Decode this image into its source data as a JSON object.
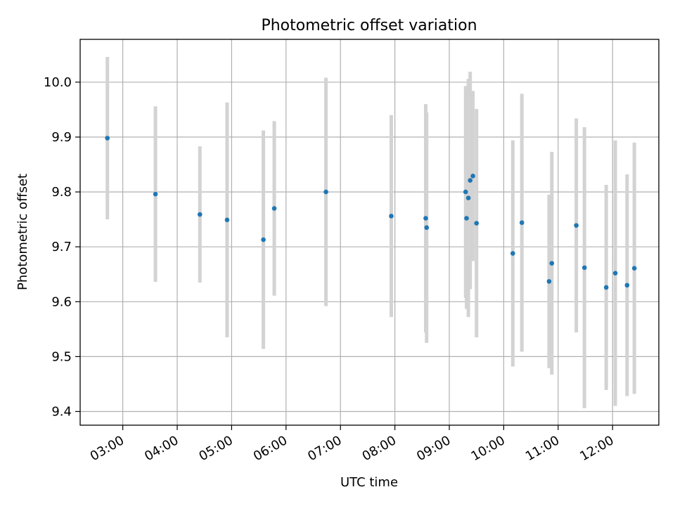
{
  "chart_data": {
    "type": "scatter",
    "title": "Photometric offset variation",
    "xlabel": "UTC time",
    "ylabel": "Photometric offset",
    "x_ticks": [
      "03:00",
      "04:00",
      "05:00",
      "06:00",
      "07:00",
      "08:00",
      "09:00",
      "10:00",
      "11:00",
      "12:00"
    ],
    "y_ticks": [
      "9.4",
      "9.5",
      "9.6",
      "9.7",
      "9.8",
      "9.9",
      "10.0"
    ],
    "xlim": [
      "02:13",
      "12:51"
    ],
    "ylim": [
      9.375,
      10.078
    ],
    "grid": true,
    "point_color": "#1f77b4",
    "errorbar_color": "#d3d3d3",
    "points": [
      {
        "t": "02:43",
        "y": 9.898,
        "err": 0.148
      },
      {
        "t": "03:36",
        "y": 9.796,
        "err": 0.16
      },
      {
        "t": "04:25",
        "y": 9.759,
        "err": 0.124
      },
      {
        "t": "04:55",
        "y": 9.749,
        "err": 0.214
      },
      {
        "t": "05:35",
        "y": 9.713,
        "err": 0.199
      },
      {
        "t": "05:47",
        "y": 9.77,
        "err": 0.159
      },
      {
        "t": "06:44",
        "y": 9.8,
        "err": 0.208
      },
      {
        "t": "07:56",
        "y": 9.756,
        "err": 0.184
      },
      {
        "t": "08:34",
        "y": 9.752,
        "err": 0.208
      },
      {
        "t": "08:35",
        "y": 9.735,
        "err": 0.21
      },
      {
        "t": "09:18",
        "y": 9.8,
        "err": 0.193
      },
      {
        "t": "09:19",
        "y": 9.752,
        "err": 0.165
      },
      {
        "t": "09:21",
        "y": 9.789,
        "err": 0.217
      },
      {
        "t": "09:23",
        "y": 9.821,
        "err": 0.198
      },
      {
        "t": "09:26",
        "y": 9.829,
        "err": 0.155
      },
      {
        "t": "09:30",
        "y": 9.743,
        "err": 0.208
      },
      {
        "t": "10:10",
        "y": 9.688,
        "err": 0.206
      },
      {
        "t": "10:20",
        "y": 9.744,
        "err": 0.235
      },
      {
        "t": "10:50",
        "y": 9.637,
        "err": 0.158
      },
      {
        "t": "10:53",
        "y": 9.67,
        "err": 0.203
      },
      {
        "t": "11:20",
        "y": 9.739,
        "err": 0.195
      },
      {
        "t": "11:29",
        "y": 9.662,
        "err": 0.256
      },
      {
        "t": "11:53",
        "y": 9.626,
        "err": 0.187
      },
      {
        "t": "12:03",
        "y": 9.652,
        "err": 0.242
      },
      {
        "t": "12:16",
        "y": 9.63,
        "err": 0.202
      },
      {
        "t": "12:24",
        "y": 9.661,
        "err": 0.229
      }
    ]
  }
}
